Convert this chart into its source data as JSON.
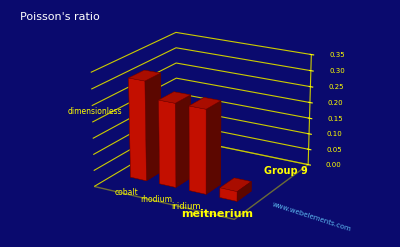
{
  "title": "Poisson's ratio",
  "ylabel": "dimensionless",
  "group_label": "Group 9",
  "website": "www.webelements.com",
  "elements": [
    "cobalt",
    "rhodium",
    "iridium",
    "meitnerium"
  ],
  "values": [
    0.31,
    0.26,
    0.26,
    0.03
  ],
  "ylim": [
    0.0,
    0.35
  ],
  "yticks": [
    0.0,
    0.05,
    0.1,
    0.15,
    0.2,
    0.25,
    0.3,
    0.35
  ],
  "bar_color": "#dd1100",
  "background_color": "#0a0a6e",
  "grid_color": "#cccc00",
  "text_color": "#ffff00",
  "title_color": "#ffffff",
  "website_color": "#66ccff",
  "figsize": [
    4.0,
    2.47
  ],
  "dpi": 100
}
